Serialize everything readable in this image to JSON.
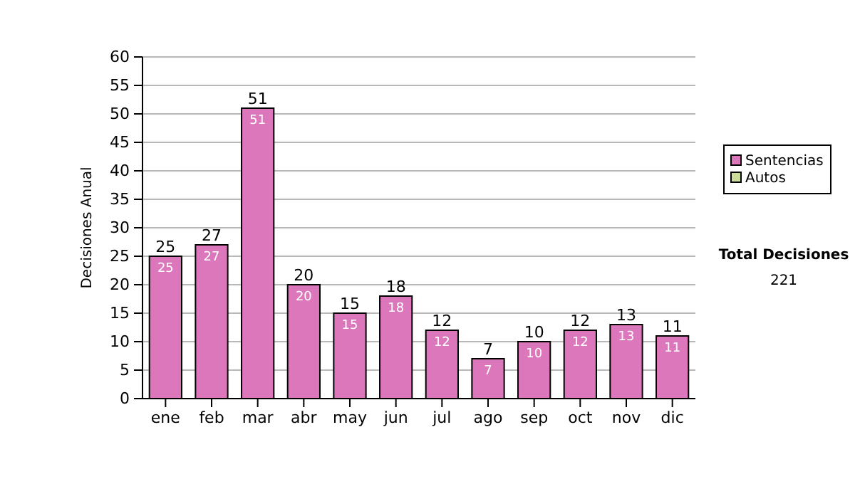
{
  "chart_data": {
    "type": "bar",
    "stacked": true,
    "ylabel": "Decisiones Anual",
    "categories": [
      "ene",
      "feb",
      "mar",
      "abr",
      "may",
      "jun",
      "jul",
      "ago",
      "sep",
      "oct",
      "nov",
      "dic"
    ],
    "series": [
      {
        "name": "Sentencias",
        "color": "#dd77bb",
        "values": [
          25,
          27,
          51,
          20,
          15,
          18,
          12,
          7,
          10,
          12,
          13,
          11
        ],
        "value_labels": [
          "25",
          "27",
          "51",
          "20",
          "15",
          "18",
          "12",
          "7",
          "10",
          "12",
          "13",
          "11"
        ]
      },
      {
        "name": "Autos",
        "color": "#ccdd99",
        "values": [
          0,
          0,
          0,
          0,
          0,
          0,
          0,
          0,
          0,
          0,
          0,
          0
        ],
        "value_labels": [
          null,
          null,
          null,
          null,
          null,
          null,
          null,
          null,
          null,
          null,
          null,
          null
        ]
      }
    ],
    "totals": [
      "25",
      "27",
      "51",
      "20",
      "15",
      "18",
      "12",
      "7",
      "10",
      "12",
      "13",
      "11"
    ],
    "ylim": [
      0,
      60
    ],
    "yticks": [
      0,
      5,
      10,
      15,
      20,
      25,
      30,
      35,
      40,
      45,
      50,
      55,
      60
    ],
    "grid": "y",
    "legend": "right",
    "annotations": [
      "Total Decisiones",
      "221"
    ]
  }
}
